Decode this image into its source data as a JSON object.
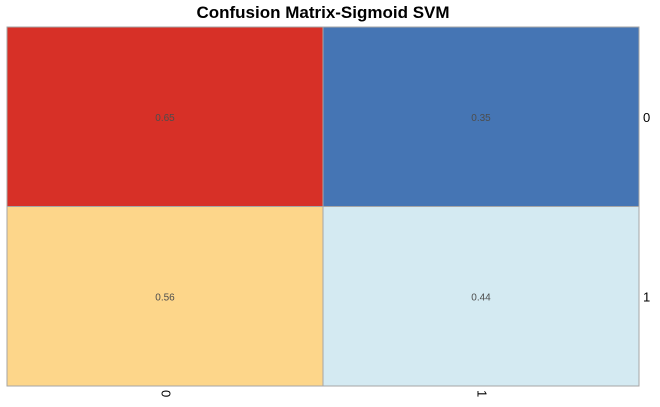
{
  "chart_data": {
    "type": "heatmap",
    "title": "Confusion Matrix-Sigmoid SVM",
    "rows": [
      "0",
      "1"
    ],
    "columns": [
      "0",
      "1"
    ],
    "values": [
      [
        0.65,
        0.35
      ],
      [
        0.56,
        0.44
      ]
    ],
    "labels": [
      [
        "0.65",
        "0.35"
      ],
      [
        "0.56",
        "0.44"
      ]
    ],
    "cell_colors": [
      [
        "#d73027",
        "#4575b4"
      ],
      [
        "#fdd68a",
        "#d4eaf2"
      ]
    ],
    "grid_color": "#a6a6a6",
    "row_labels_position": "right",
    "column_labels_position": "bottom",
    "column_labels_rotation": "vertical",
    "legend": "none"
  }
}
